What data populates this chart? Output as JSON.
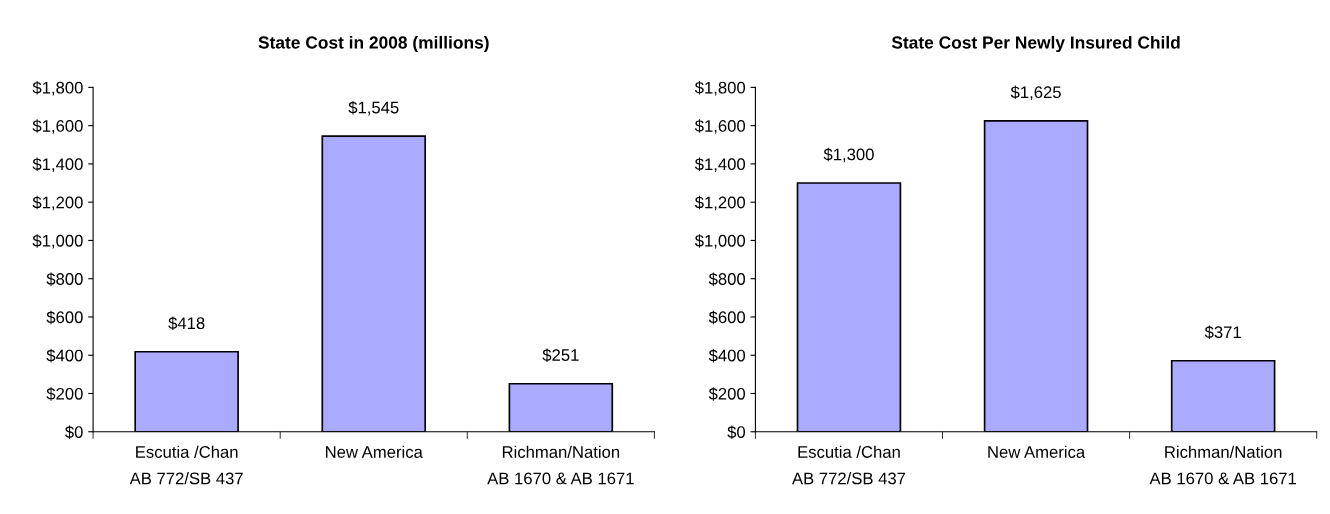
{
  "chart_data": [
    {
      "type": "bar",
      "title": "State Cost in 2008 (millions)",
      "categories": [
        "Escutia /Chan\nAB 772/SB 437",
        "New America",
        "Richman/Nation\nAB 1670 & AB 1671"
      ],
      "values": [
        418,
        1545,
        251
      ],
      "value_labels": [
        "$418",
        "$1,545",
        "$251"
      ],
      "color": "#aaaaff",
      "ylim": [
        0,
        1800
      ],
      "yticks": [
        {
          "value": 0,
          "label": "$0"
        },
        {
          "value": 200,
          "label": "$200"
        },
        {
          "value": 400,
          "label": "$400"
        },
        {
          "value": 600,
          "label": "$600"
        },
        {
          "value": 800,
          "label": "$800"
        },
        {
          "value": 1000,
          "label": "$1,000"
        },
        {
          "value": 1200,
          "label": "$1,200"
        },
        {
          "value": 1400,
          "label": "$1,400"
        },
        {
          "value": 1600,
          "label": "$1,600"
        },
        {
          "value": 1800,
          "label": "$1,800"
        }
      ],
      "grid": false,
      "legend": false
    },
    {
      "type": "bar",
      "title": "State Cost Per Newly Insured Child",
      "categories": [
        "Escutia /Chan\nAB 772/SB 437",
        "New America",
        "Richman/Nation\nAB 1670 & AB 1671"
      ],
      "values": [
        1300,
        1625,
        371
      ],
      "value_labels": [
        "$1,300",
        "$1,625",
        "$371"
      ],
      "color": "#aaaaff",
      "ylim": [
        0,
        1800
      ],
      "yticks": [
        {
          "value": 0,
          "label": "$0"
        },
        {
          "value": 200,
          "label": "$200"
        },
        {
          "value": 400,
          "label": "$400"
        },
        {
          "value": 600,
          "label": "$600"
        },
        {
          "value": 800,
          "label": "$800"
        },
        {
          "value": 1000,
          "label": "$1,000"
        },
        {
          "value": 1200,
          "label": "$1,200"
        },
        {
          "value": 1400,
          "label": "$1,400"
        },
        {
          "value": 1600,
          "label": "$1,600"
        },
        {
          "value": 1800,
          "label": "$1,800"
        }
      ],
      "grid": false,
      "legend": false
    }
  ]
}
